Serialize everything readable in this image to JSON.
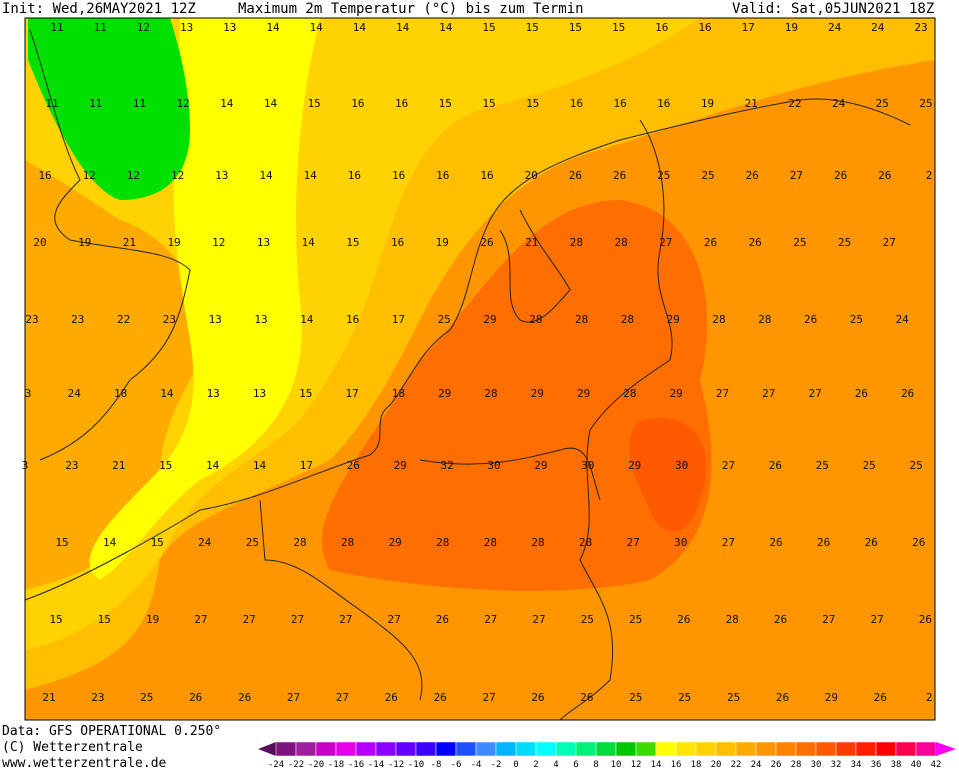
{
  "header": {
    "init": "Init: Wed,26MAY2021 12Z",
    "title": "Maximum 2m Temperatur (°C) bis zum Termin",
    "valid": "Valid: Sat,05JUN2021 18Z"
  },
  "footer": {
    "data": "Data: GFS OPERATIONAL 0.250°",
    "copyright": "(C) Wetterzentrale",
    "url": "www.wetterzentrale.de"
  },
  "map": {
    "rows": [
      [
        11,
        11,
        12,
        13,
        13,
        14,
        14,
        14,
        14,
        14,
        15,
        15,
        15,
        15,
        16,
        16,
        17,
        19,
        24,
        24,
        23
      ],
      [
        11,
        11,
        11,
        12,
        14,
        14,
        15,
        16,
        16,
        15,
        15,
        15,
        16,
        16,
        16,
        19,
        21,
        22,
        24,
        25,
        25
      ],
      [
        16,
        12,
        12,
        12,
        13,
        14,
        14,
        16,
        16,
        16,
        16,
        20,
        26,
        26,
        25,
        25,
        26,
        27,
        26,
        26,
        2
      ],
      [
        20,
        19,
        21,
        19,
        12,
        13,
        14,
        15,
        16,
        19,
        26,
        21,
        28,
        28,
        27,
        26,
        26,
        25,
        25,
        27
      ],
      [
        23,
        23,
        22,
        23,
        13,
        13,
        14,
        16,
        17,
        25,
        29,
        28,
        28,
        28,
        29,
        28,
        28,
        26,
        25,
        24
      ],
      [
        3,
        24,
        18,
        14,
        13,
        13,
        15,
        17,
        18,
        29,
        28,
        29,
        29,
        28,
        29,
        27,
        27,
        27,
        26,
        26
      ],
      [
        3,
        23,
        21,
        15,
        14,
        14,
        17,
        26,
        29,
        32,
        30,
        29,
        30,
        29,
        30,
        27,
        26,
        25,
        25,
        25
      ],
      [
        15,
        14,
        15,
        24,
        25,
        28,
        28,
        29,
        28,
        28,
        28,
        28,
        27,
        30,
        27,
        26,
        26,
        26,
        26
      ],
      [
        15,
        15,
        19,
        27,
        27,
        27,
        27,
        27,
        26,
        27,
        27,
        25,
        25,
        26,
        28,
        26,
        27,
        27,
        26
      ],
      [
        21,
        23,
        25,
        26,
        26,
        27,
        27,
        26,
        26,
        27,
        26,
        26,
        25,
        25,
        25,
        26,
        29,
        26,
        2
      ]
    ]
  },
  "colorbar": {
    "ticks": [
      -24,
      -22,
      -20,
      -18,
      -16,
      -14,
      -12,
      -10,
      -8,
      -6,
      -4,
      -2,
      0,
      2,
      4,
      6,
      8,
      10,
      12,
      14,
      16,
      18,
      20,
      22,
      24,
      26,
      28,
      30,
      32,
      34,
      36,
      38,
      40,
      42
    ],
    "colors": [
      "#5a0a5a",
      "#7d147d",
      "#a01ea0",
      "#c800c8",
      "#e600e6",
      "#b400ff",
      "#8c00ff",
      "#6400ff",
      "#3c00ff",
      "#0000ff",
      "#1e50ff",
      "#3c8cff",
      "#00b4ff",
      "#00dcff",
      "#00ffff",
      "#00ffb4",
      "#00f078",
      "#00dc3c",
      "#00c800",
      "#3cdc00",
      "#ffff00",
      "#ffe600",
      "#ffd200",
      "#ffbe00",
      "#ffaa00",
      "#ff9600",
      "#ff8200",
      "#ff6e00",
      "#ff5a00",
      "#ff3c00",
      "#ff1e00",
      "#ff0000",
      "#ff0050",
      "#ff0096",
      "#ff00c8",
      "#ff00ff"
    ]
  }
}
